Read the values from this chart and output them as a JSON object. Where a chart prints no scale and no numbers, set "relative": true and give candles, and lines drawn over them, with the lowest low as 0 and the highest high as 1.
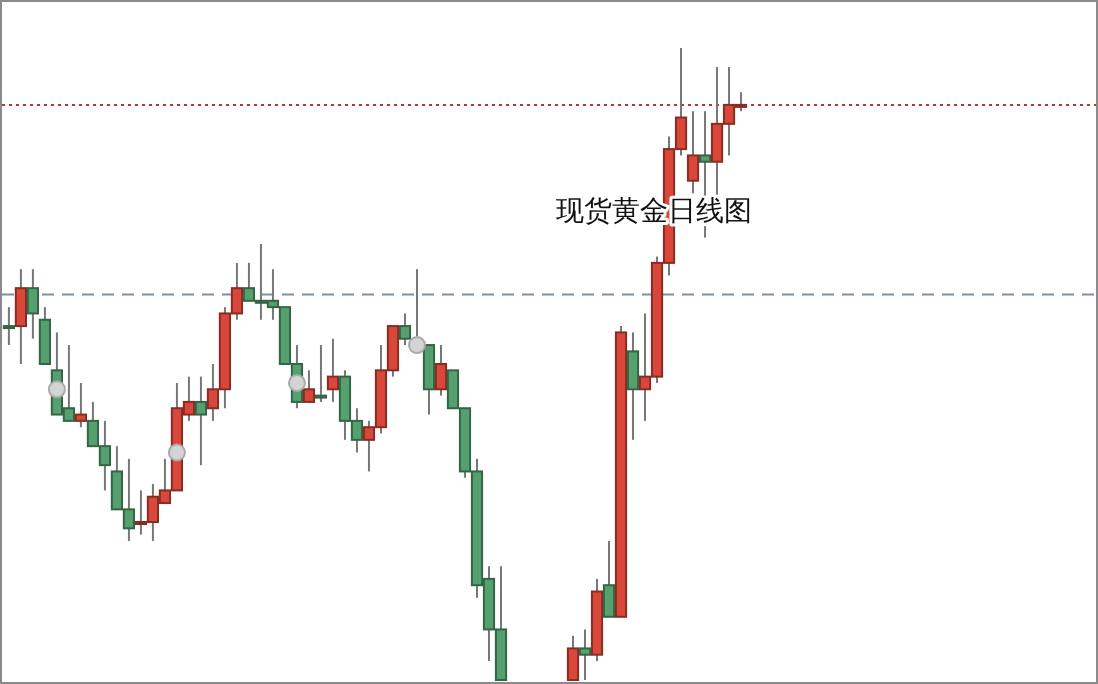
{
  "chart_data": {
    "type": "candlestick",
    "title": "现货黄金日线图",
    "relative": true,
    "categories": [
      null,
      null,
      null,
      null,
      null,
      null,
      null,
      null,
      null,
      null,
      null,
      null,
      null,
      null,
      null,
      null,
      null,
      null,
      null,
      null,
      null,
      null,
      null,
      null,
      null,
      null,
      null,
      null,
      null,
      null,
      null,
      null,
      null,
      null,
      null,
      null,
      null,
      null,
      null,
      null,
      null,
      null,
      null,
      null,
      null,
      null,
      null,
      null,
      null,
      null,
      null,
      null,
      null,
      null,
      null,
      null,
      null,
      null,
      null,
      null,
      null,
      null,
      null,
      null,
      null,
      null,
      null,
      null,
      null,
      null,
      null,
      null,
      null,
      null,
      null,
      null,
      null,
      null,
      null,
      null,
      null,
      null,
      null,
      null,
      null,
      null,
      null,
      null,
      null,
      null,
      null
    ],
    "ohlc": [
      [
        0.56,
        0.59,
        0.53,
        0.56
      ],
      [
        0.56,
        0.65,
        0.5,
        0.62
      ],
      [
        0.62,
        0.65,
        0.54,
        0.58
      ],
      [
        0.57,
        0.59,
        0.5,
        0.5
      ],
      [
        0.49,
        0.55,
        0.42,
        0.42
      ],
      [
        0.43,
        0.53,
        0.41,
        0.41
      ],
      [
        0.41,
        0.47,
        0.4,
        0.42
      ],
      [
        0.41,
        0.44,
        0.37,
        0.37
      ],
      [
        0.37,
        0.41,
        0.3,
        0.34
      ],
      [
        0.33,
        0.37,
        0.27,
        0.27
      ],
      [
        0.27,
        0.35,
        0.22,
        0.24
      ],
      [
        0.25,
        0.3,
        0.23,
        0.25
      ],
      [
        0.25,
        0.31,
        0.22,
        0.29
      ],
      [
        0.28,
        0.35,
        0.28,
        0.3
      ],
      [
        0.3,
        0.47,
        0.3,
        0.43
      ],
      [
        0.42,
        0.48,
        0.41,
        0.44
      ],
      [
        0.44,
        0.48,
        0.34,
        0.42
      ],
      [
        0.43,
        0.5,
        0.41,
        0.46
      ],
      [
        0.46,
        0.59,
        0.43,
        0.58
      ],
      [
        0.58,
        0.66,
        0.57,
        0.62
      ],
      [
        0.62,
        0.66,
        0.6,
        0.6
      ],
      [
        0.6,
        0.69,
        0.57,
        0.6
      ],
      [
        0.6,
        0.65,
        0.57,
        0.59
      ],
      [
        0.59,
        0.59,
        0.5,
        0.5
      ],
      [
        0.5,
        0.53,
        0.43,
        0.44
      ],
      [
        0.44,
        0.49,
        0.44,
        0.46
      ],
      [
        0.45,
        0.53,
        0.44,
        0.45
      ],
      [
        0.46,
        0.54,
        0.44,
        0.48
      ],
      [
        0.48,
        0.49,
        0.38,
        0.41
      ],
      [
        0.41,
        0.43,
        0.36,
        0.38
      ],
      [
        0.38,
        0.41,
        0.33,
        0.4
      ],
      [
        0.4,
        0.53,
        0.39,
        0.49
      ],
      [
        0.49,
        0.56,
        0.48,
        0.56
      ],
      [
        0.56,
        0.58,
        0.53,
        0.54
      ],
      [
        0.53,
        0.65,
        0.52,
        0.53
      ],
      [
        0.53,
        0.53,
        0.42,
        0.46
      ],
      [
        0.46,
        0.53,
        0.45,
        0.5
      ],
      [
        0.49,
        0.49,
        0.43,
        0.43
      ],
      [
        0.43,
        0.43,
        0.32,
        0.33
      ],
      [
        0.33,
        0.35,
        0.13,
        0.15
      ],
      [
        0.16,
        0.18,
        0.03,
        0.08
      ],
      [
        0.08,
        0.18,
        0,
        0
      ],
      null,
      null,
      null,
      null,
      null,
      [
        0,
        0.07,
        0,
        0.05
      ],
      [
        0.05,
        0.08,
        0,
        0.04
      ],
      [
        0.04,
        0.16,
        0.03,
        0.14
      ],
      [
        0.15,
        0.22,
        0.1,
        0.1
      ],
      [
        0.1,
        0.56,
        0.1,
        0.55
      ],
      [
        0.52,
        0.55,
        0.38,
        0.46
      ],
      [
        0.46,
        0.58,
        0.41,
        0.48
      ],
      [
        0.48,
        0.67,
        0.47,
        0.66
      ],
      [
        0.66,
        0.86,
        0.64,
        0.84
      ],
      [
        0.84,
        1,
        0.83,
        0.89
      ],
      [
        0.79,
        0.9,
        0.77,
        0.83
      ],
      [
        0.83,
        0.9,
        0.7,
        0.82
      ],
      [
        0.82,
        0.97,
        0.73,
        0.88
      ],
      [
        0.88,
        0.97,
        0.83,
        0.91
      ],
      [
        0.91,
        0.93,
        0.9,
        0.91
      ],
      null,
      null,
      null,
      null,
      null,
      null,
      null,
      null,
      null,
      null,
      null,
      null,
      null,
      null,
      null,
      null,
      null,
      null,
      null,
      null,
      null,
      null,
      null,
      null,
      null,
      null,
      null,
      null,
      null
    ],
    "colors": [
      "#55a06f",
      "#d9473a",
      "#55a06f",
      "#55a06f",
      "#55a06f",
      "#55a06f",
      "#d9473a",
      "#55a06f",
      "#55a06f",
      "#55a06f",
      "#55a06f",
      "#d9473a",
      "#d9473a",
      "#d9473a",
      "#d9473a",
      "#d9473a",
      "#55a06f",
      "#d9473a",
      "#d9473a",
      "#d9473a",
      "#55a06f",
      "#55a06f",
      "#55a06f",
      "#55a06f",
      "#55a06f",
      "#d9473a",
      "#55a06f",
      "#d9473a",
      "#55a06f",
      "#55a06f",
      "#d9473a",
      "#d9473a",
      "#d9473a",
      "#55a06f",
      "#55a06f",
      "#55a06f",
      "#d9473a",
      "#55a06f",
      "#55a06f",
      "#55a06f",
      "#55a06f",
      "#55a06f",
      null,
      null,
      null,
      null,
      null,
      "#d9473a",
      "#55a06f",
      "#d9473a",
      "#55a06f",
      "#d9473a",
      "#55a06f",
      "#d9473a",
      "#d9473a",
      "#d9473a",
      "#d9473a",
      "#d9473a",
      "#55a06f",
      "#d9473a",
      "#d9473a",
      "#d9473a",
      null,
      null,
      null,
      null,
      null,
      null,
      null,
      null,
      null,
      null,
      null,
      null,
      null,
      null,
      null,
      null,
      null,
      null,
      null,
      null,
      null,
      null,
      null,
      null,
      null,
      null,
      null,
      null,
      null
    ],
    "series": [
      {
        "type": "scatter",
        "color": "#d4d4d4",
        "values": [
          null,
          null,
          null,
          null,
          0.46,
          null,
          null,
          null,
          null,
          null,
          null,
          null,
          null,
          null,
          0.36,
          null,
          null,
          null,
          null,
          null,
          null,
          null,
          null,
          null,
          0.47,
          null,
          null,
          null,
          null,
          null,
          null,
          null,
          null,
          null,
          0.53,
          null,
          null,
          null,
          null,
          null,
          null,
          null,
          null,
          null,
          null,
          null,
          null,
          null,
          null,
          null,
          null,
          null,
          null,
          null,
          null,
          null,
          null,
          null,
          null,
          null,
          null,
          null,
          null,
          null,
          null,
          null,
          null,
          null,
          null,
          null,
          null,
          null,
          null,
          null,
          null,
          null,
          null,
          null,
          null,
          null,
          null,
          null,
          null,
          null,
          null,
          null,
          null,
          null,
          null,
          null,
          null
        ]
      }
    ],
    "marker": "circle",
    "ref_lines": [
      {
        "axis": "y",
        "value": 0.91,
        "color": "#b03a2e",
        "line_style": "dotted"
      },
      {
        "axis": "y",
        "value": 0.61,
        "color": "#7d8fa3",
        "line_style": "dashed"
      }
    ]
  }
}
